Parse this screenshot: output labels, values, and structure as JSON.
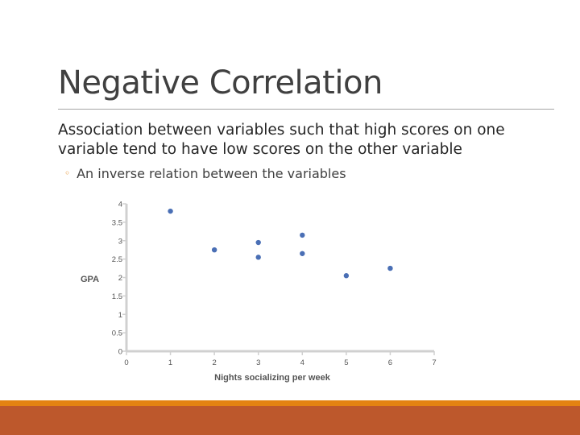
{
  "slide": {
    "title": "Negative Correlation",
    "body": "Association between variables such that high scores on one variable tend to have low scores on the other variable",
    "bullet": "An inverse relation between the variables",
    "bullet_glyph": "◦",
    "colors": {
      "accent": "#e48312",
      "footer": "#bd582c",
      "title": "#404040",
      "point": "#4a6fb5"
    }
  },
  "chart_data": {
    "type": "scatter",
    "title": "",
    "xlabel": "Nights socializing per week",
    "ylabel": "GPA",
    "xlim": [
      0,
      7
    ],
    "ylim": [
      0,
      4
    ],
    "x_ticks": [
      "0",
      "1",
      "2",
      "3",
      "4",
      "5",
      "6",
      "7"
    ],
    "y_ticks": [
      "0",
      "0.5",
      "1",
      "1.5",
      "2",
      "2.5",
      "3",
      "3.5",
      "4"
    ],
    "grid": false,
    "points": [
      {
        "x": 1,
        "y": 3.8
      },
      {
        "x": 2,
        "y": 2.75
      },
      {
        "x": 3,
        "y": 2.95
      },
      {
        "x": 3,
        "y": 2.55
      },
      {
        "x": 4,
        "y": 3.15
      },
      {
        "x": 4,
        "y": 2.65
      },
      {
        "x": 5,
        "y": 2.05
      },
      {
        "x": 6,
        "y": 2.25
      }
    ]
  }
}
